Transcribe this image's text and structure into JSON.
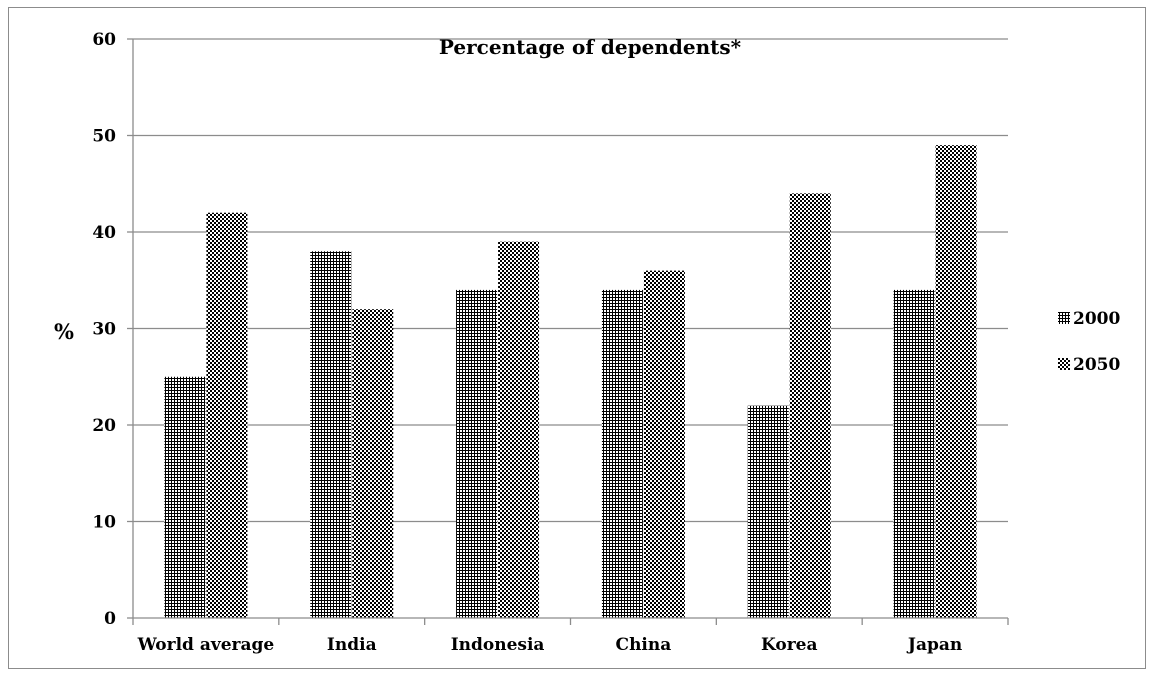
{
  "chart_data": {
    "type": "bar",
    "title": "Percentage of dependents*",
    "xlabel": "",
    "ylabel": "%",
    "ylim": [
      0,
      60
    ],
    "yticks": [
      0,
      10,
      20,
      30,
      40,
      50,
      60
    ],
    "grid": true,
    "legend_position": "right",
    "categories": [
      "World average",
      "India",
      "Indonesia",
      "China",
      "Korea",
      "Japan"
    ],
    "series": [
      {
        "name": "2000",
        "values": [
          25,
          38,
          34,
          34,
          22,
          34
        ],
        "pattern": "grid"
      },
      {
        "name": "2050",
        "values": [
          42,
          32,
          39,
          36,
          44,
          49
        ],
        "pattern": "checker"
      }
    ]
  }
}
